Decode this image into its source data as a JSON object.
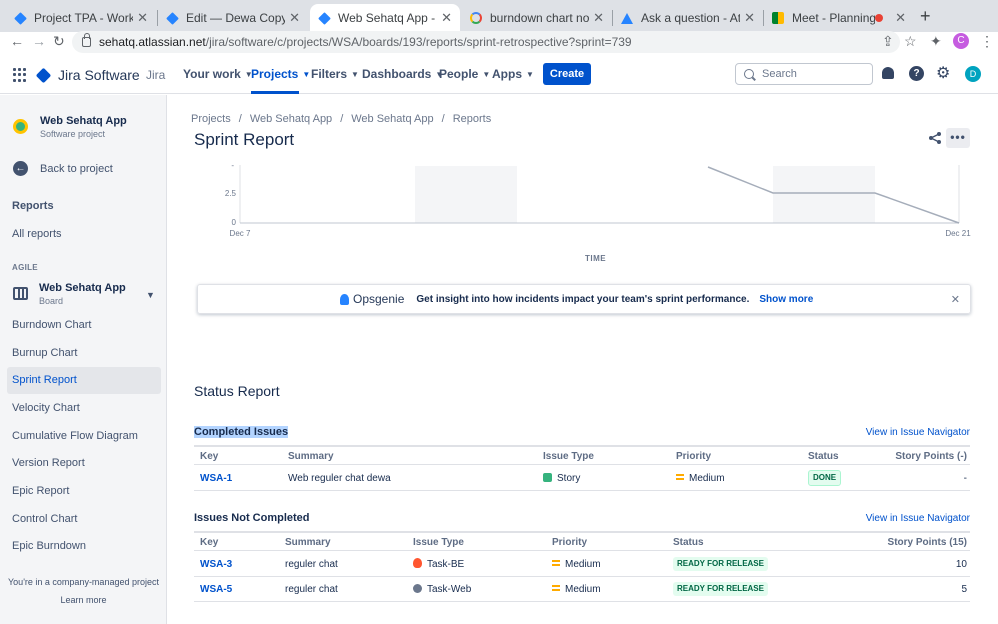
{
  "browser": {
    "tabs": [
      {
        "title": "Project TPA - Workflows - ",
        "icon": "jira-icon"
      },
      {
        "title": "Edit — Dewa Copy of Seha",
        "icon": "jira-icon"
      },
      {
        "title": "Web Sehatq App - Web Se",
        "icon": "jira-icon",
        "active": true
      },
      {
        "title": "burndown chart not down",
        "icon": "google-icon"
      },
      {
        "title": "Ask a question - Atlassian",
        "icon": "atlassian-icon"
      },
      {
        "title": "Meet - Planning Corp",
        "icon": "meet-icon"
      }
    ],
    "url_host": "sehatq.atlassian.net",
    "url_path": "/jira/software/c/projects/WSA/boards/193/reports/sprint-retrospective?sprint=739",
    "profile_initial": "C"
  },
  "topnav": {
    "product": "Jira Software",
    "jira": "Jira",
    "menus": [
      "Your work",
      "Projects",
      "Filters",
      "Dashboards",
      "People",
      "Apps"
    ],
    "selected_menu": "Projects",
    "create": "Create",
    "search_placeholder": "Search",
    "avatar_initial": "D"
  },
  "sidebar": {
    "project_name": "Web Sehatq App",
    "project_type": "Software project",
    "back": "Back to project",
    "reports_heading": "Reports",
    "all_reports": "All reports",
    "agile_caption": "AGILE",
    "board_name": "Web Sehatq App",
    "board_type": "Board",
    "items": [
      "Burndown Chart",
      "Burnup Chart",
      "Sprint Report",
      "Velocity Chart",
      "Cumulative Flow Diagram",
      "Version Report",
      "Epic Report",
      "Control Chart",
      "Epic Burndown"
    ],
    "selected_item": "Sprint Report",
    "footer_text": "You're in a company-managed project",
    "learn_more": "Learn more"
  },
  "main": {
    "breadcrumb": [
      "Projects",
      "Web Sehatq App",
      "Web Sehatq App",
      "Reports"
    ],
    "title": "Sprint Report",
    "more": "•••"
  },
  "chart_data": {
    "type": "line",
    "x": [
      "Dec 7",
      "Dec 21"
    ],
    "xlabel": "TIME",
    "y_ticks": [
      "0",
      "2.5"
    ],
    "ylim": [
      0,
      5
    ],
    "series": [
      {
        "values_visible": [
          {
            "y": 2.5,
            "note": "flat segment mid-range"
          },
          {
            "y": 0
          }
        ]
      }
    ]
  },
  "banner": {
    "brand": "Opsgenie",
    "text": "Get insight into how incidents impact your team's sprint performance.",
    "link": "Show more"
  },
  "report": {
    "status_title": "Status Report",
    "completed_title": "Completed Issues",
    "not_completed_title": "Issues Not Completed",
    "navigator_link": "View in Issue Navigator",
    "completed_headers": [
      "Key",
      "Summary",
      "Issue Type",
      "Priority",
      "Status",
      "Story Points (-)"
    ],
    "completed_rows": [
      {
        "key": "WSA-1",
        "summary": "Web reguler chat dewa",
        "type": "Story",
        "priority": "Medium",
        "status": "DONE",
        "points": "-"
      }
    ],
    "not_completed_headers": [
      "Key",
      "Summary",
      "Issue Type",
      "Priority",
      "Status",
      "Story Points (15)"
    ],
    "not_completed_rows": [
      {
        "key": "WSA-3",
        "summary": "reguler chat",
        "type": "Task-BE",
        "priority": "Medium",
        "status": "READY FOR RELEASE",
        "points": "10"
      },
      {
        "key": "WSA-5",
        "summary": "reguler chat",
        "type": "Task-Web",
        "priority": "Medium",
        "status": "READY FOR RELEASE",
        "points": "5"
      }
    ]
  }
}
